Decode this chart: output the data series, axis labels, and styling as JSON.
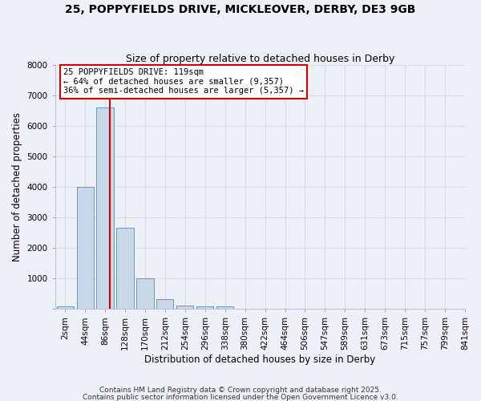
{
  "title": "25, POPPYFIELDS DRIVE, MICKLEOVER, DERBY, DE3 9GB",
  "subtitle": "Size of property relative to detached houses in Derby",
  "xlabel": "Distribution of detached houses by size in Derby",
  "ylabel": "Number of detached properties",
  "bar_values": [
    75,
    4000,
    6600,
    2650,
    1000,
    320,
    120,
    80,
    80,
    0,
    0,
    0,
    0,
    0,
    0,
    0,
    0,
    0,
    0,
    0
  ],
  "bar_labels": [
    "2sqm",
    "44sqm",
    "86sqm",
    "128sqm",
    "170sqm",
    "212sqm",
    "254sqm",
    "296sqm",
    "338sqm",
    "380sqm",
    "422sqm",
    "464sqm",
    "506sqm",
    "547sqm",
    "589sqm",
    "631sqm",
    "673sqm",
    "715sqm",
    "757sqm",
    "799sqm",
    "841sqm"
  ],
  "bar_color": "#c8d8e8",
  "bar_edgecolor": "#6699bb",
  "grid_color": "#d8dce8",
  "bg_color": "#eef0f8",
  "vline_color": "#cc0000",
  "annotation_text": "25 POPPYFIELDS DRIVE: 119sqm\n← 64% of detached houses are smaller (9,357)\n36% of semi-detached houses are larger (5,357) →",
  "annotation_box_color": "#cc0000",
  "annotation_bg": "#ffffff",
  "ylim": [
    0,
    8000
  ],
  "yticks": [
    0,
    1000,
    2000,
    3000,
    4000,
    5000,
    6000,
    7000,
    8000
  ],
  "title_fontsize": 10,
  "subtitle_fontsize": 9,
  "axis_fontsize": 8.5,
  "tick_fontsize": 7.5,
  "annot_fontsize": 7.5,
  "footer1": "Contains HM Land Registry data © Crown copyright and database right 2025.",
  "footer2": "Contains public sector information licensed under the Open Government Licence v3.0."
}
